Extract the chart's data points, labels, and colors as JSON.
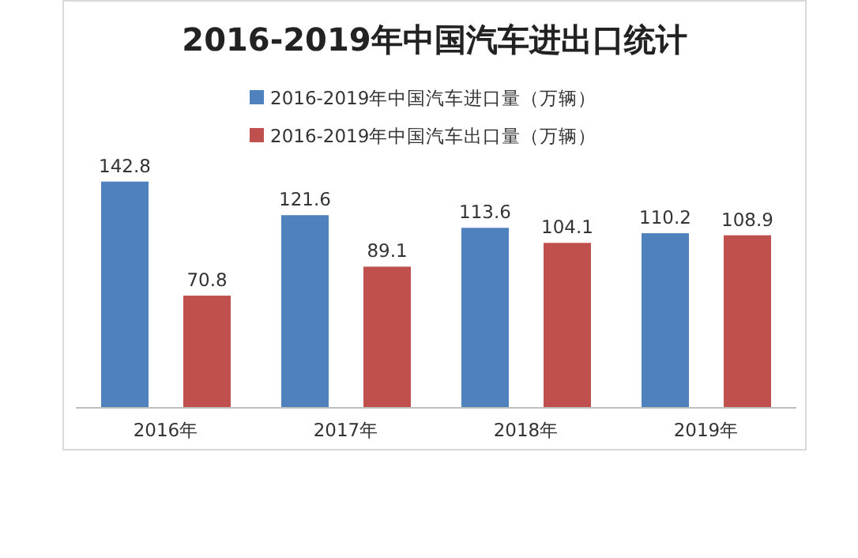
{
  "chart_data": {
    "type": "bar",
    "title": "2016-2019年中国汽车进出口统计",
    "categories": [
      "2016年",
      "2017年",
      "2018年",
      "2019年"
    ],
    "series": [
      {
        "name": "2016-2019年中国汽车进口量（万辆）",
        "color": "#4f81bd",
        "values": [
          142.8,
          121.6,
          113.6,
          110.2
        ]
      },
      {
        "name": "2016-2019年中国汽车出口量（万辆）",
        "color": "#c0504d",
        "values": [
          70.8,
          89.1,
          104.1,
          108.9
        ]
      }
    ],
    "data_labels": true,
    "legend": "top",
    "grid": false
  }
}
